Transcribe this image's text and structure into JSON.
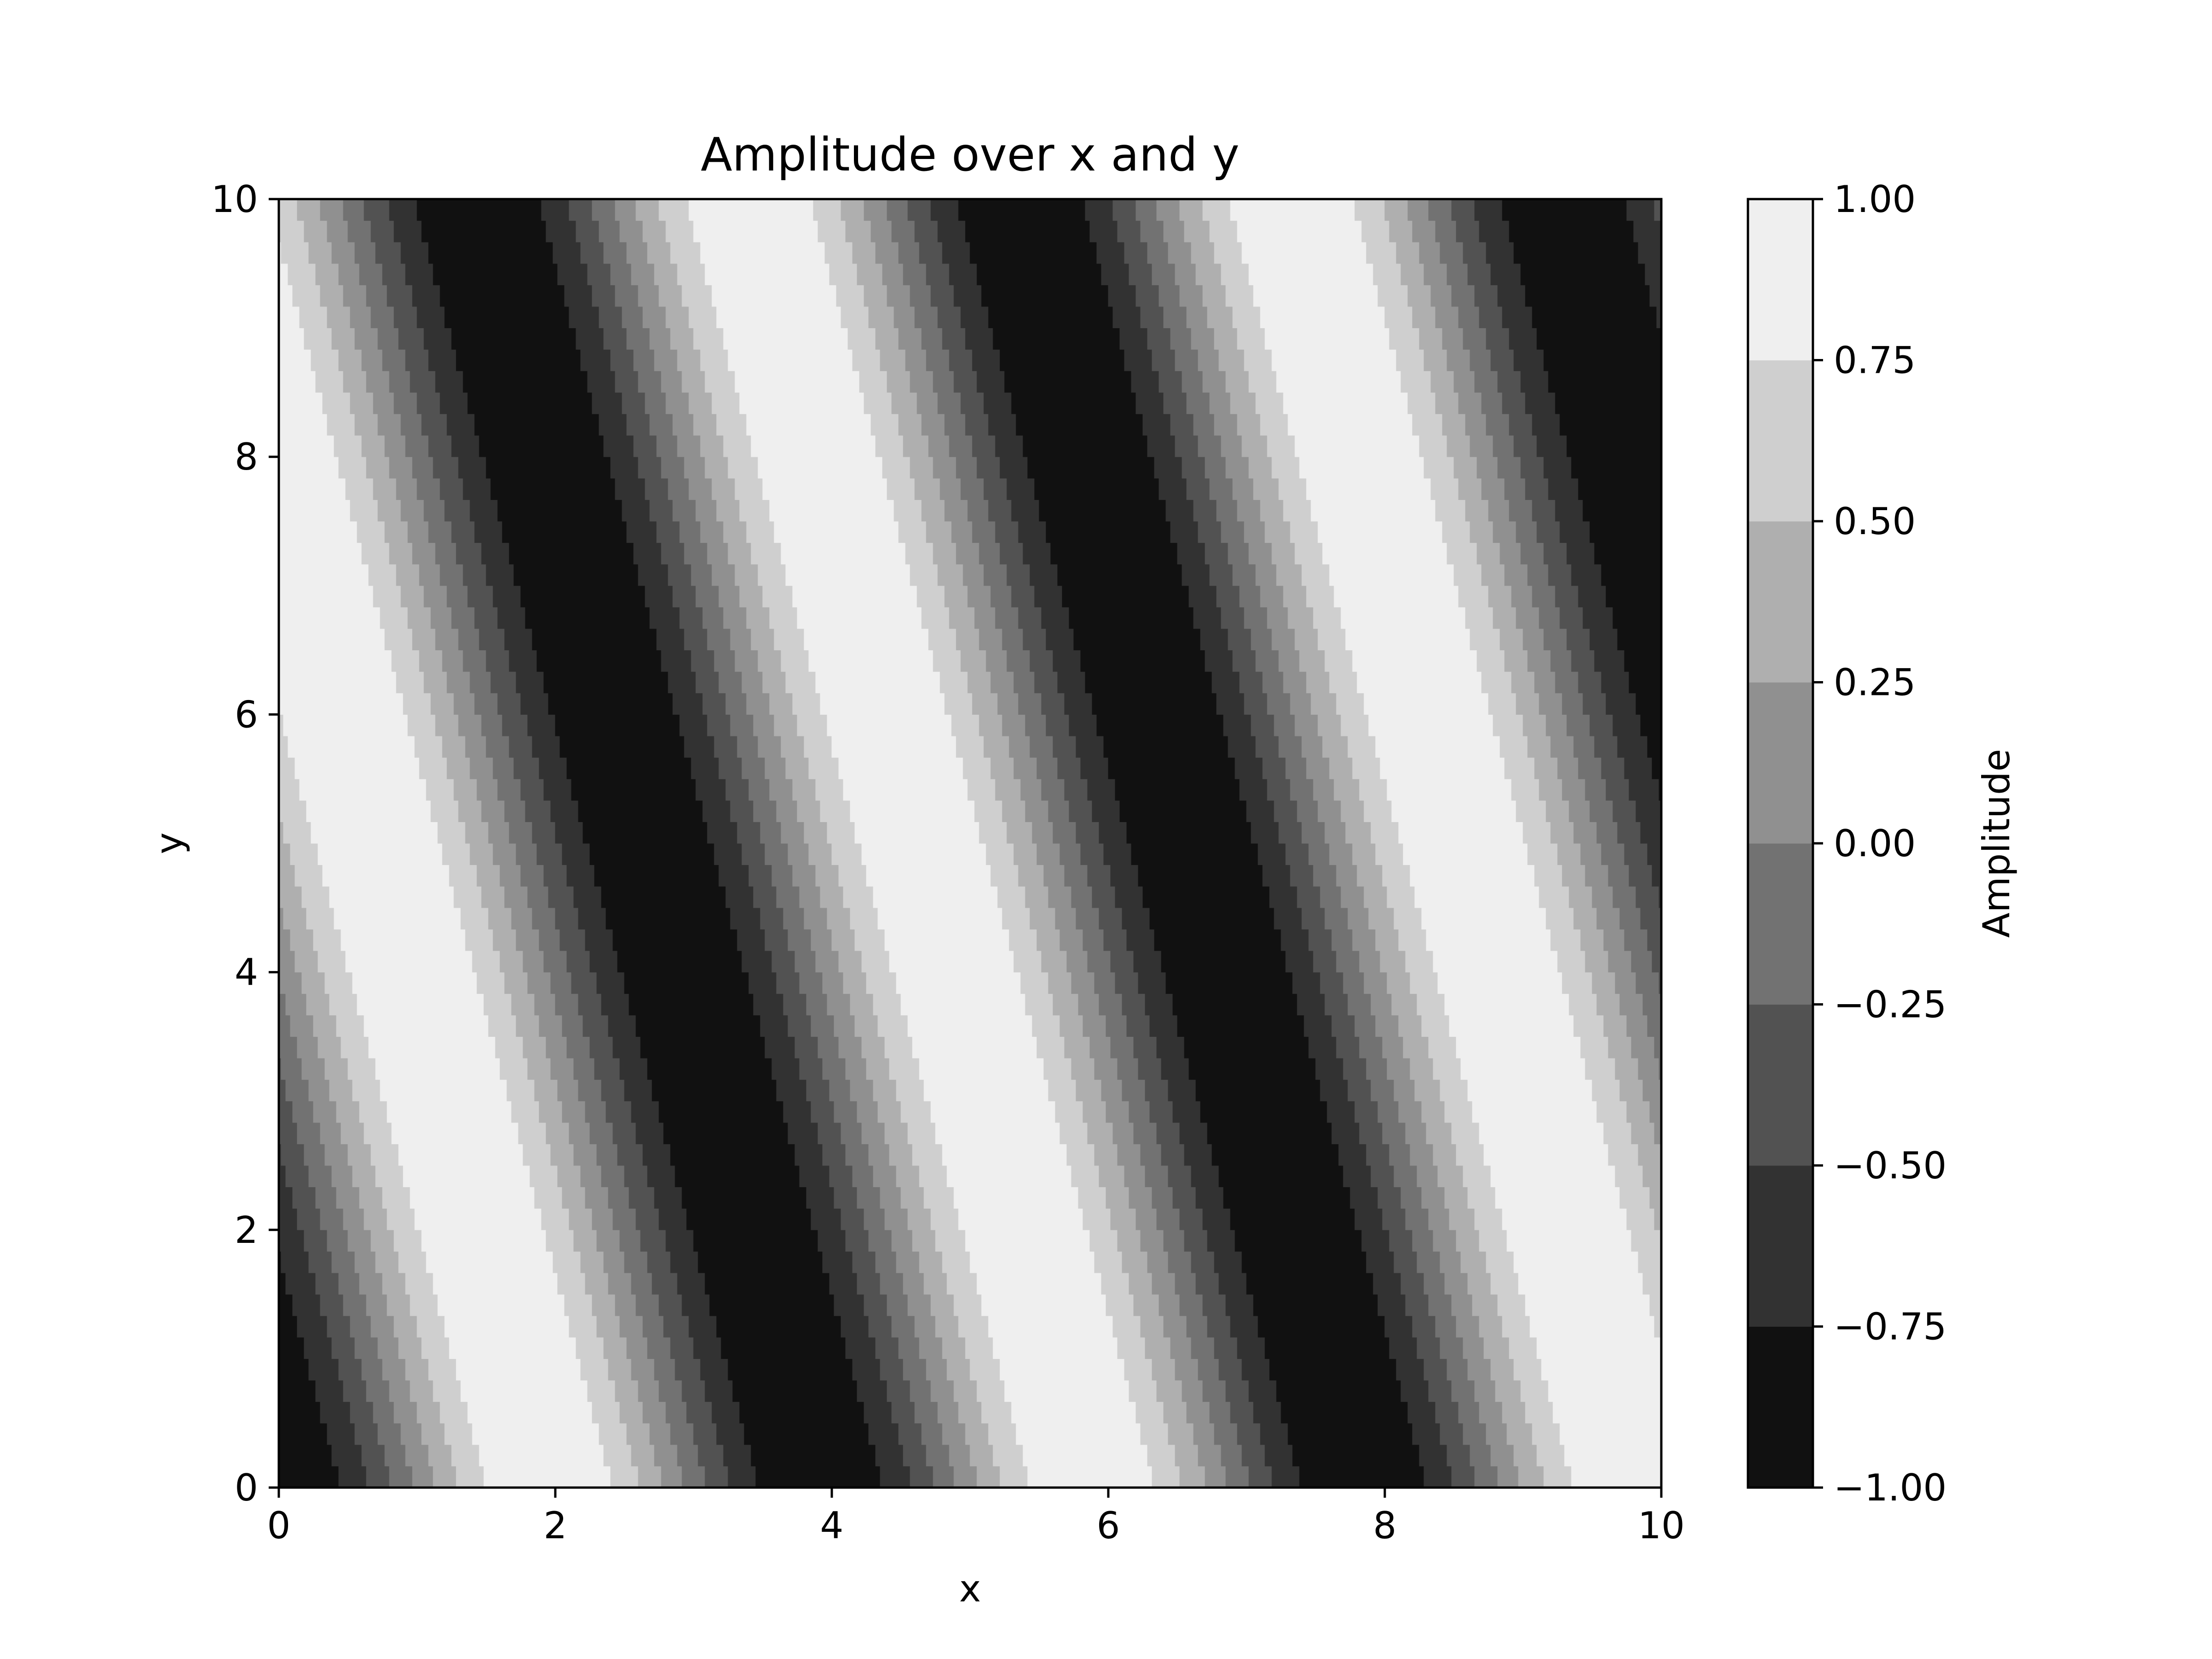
{
  "chart_data": {
    "type": "contourf",
    "title": "Amplitude over x and y",
    "xlabel": "x",
    "ylabel": "y",
    "xlim": [
      0,
      10
    ],
    "ylim": [
      0,
      10
    ],
    "x_ticks": [
      "0",
      "2",
      "4",
      "6",
      "8",
      "10"
    ],
    "y_ticks": [
      "0",
      "2",
      "4",
      "6",
      "8",
      "10"
    ],
    "function": "sin(1.6*x + 0.4*y - 1.571)",
    "colorbar": {
      "label": "Amplitude",
      "levels": [
        -1.0,
        -0.75,
        -0.5,
        -0.25,
        0.0,
        0.25,
        0.5,
        0.75,
        1.0
      ],
      "tick_labels": [
        "−1.00",
        "−0.75",
        "−0.50",
        "−0.25",
        "0.00",
        "0.25",
        "0.50",
        "0.75",
        "1.00"
      ],
      "band_colors": [
        "#111111",
        "#323232",
        "#525252",
        "#727272",
        "#909090",
        "#afafaf",
        "#cfcfcf",
        "#efefef"
      ]
    },
    "grid": false,
    "legend": "none"
  }
}
